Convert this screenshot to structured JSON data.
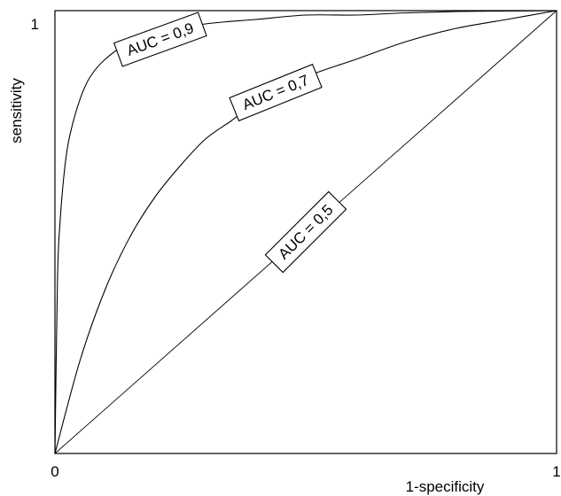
{
  "chart_data": {
    "type": "line",
    "title": "",
    "xlabel": "1-specificity",
    "ylabel": "sensitivity",
    "xlim": [
      0,
      1
    ],
    "ylim": [
      0,
      1
    ],
    "x_tick_labels": [
      "0",
      "1"
    ],
    "y_tick_labels": [
      "1"
    ],
    "grid": false,
    "legend": "none",
    "series": [
      {
        "label": "AUC = 0,9",
        "x": [
          0,
          0.005,
          0.01,
          0.02,
          0.03,
          0.05,
          0.07,
          0.1,
          0.15,
          0.2,
          0.3,
          0.4,
          0.5,
          0.6,
          0.7,
          0.8,
          0.9,
          1
        ],
        "y": [
          0,
          0.39,
          0.52,
          0.65,
          0.72,
          0.8,
          0.85,
          0.89,
          0.93,
          0.95,
          0.97,
          0.98,
          0.99,
          0.99,
          0.995,
          0.998,
          0.999,
          1
        ]
      },
      {
        "label": "AUC = 0,7",
        "x": [
          0,
          0.05,
          0.1,
          0.15,
          0.2,
          0.25,
          0.3,
          0.35,
          0.4,
          0.5,
          0.6,
          0.7,
          0.8,
          0.9,
          1
        ],
        "y": [
          0,
          0.21,
          0.37,
          0.49,
          0.58,
          0.65,
          0.71,
          0.75,
          0.79,
          0.85,
          0.89,
          0.93,
          0.96,
          0.98,
          1
        ]
      },
      {
        "label": "AUC = 0,5",
        "x": [
          0,
          1
        ],
        "y": [
          0,
          1
        ]
      }
    ],
    "annotations": [
      {
        "text": "AUC = 0,9",
        "series": 0,
        "at": [
          0.21,
          0.935
        ],
        "angle": -20
      },
      {
        "text": "AUC = 0,7",
        "series": 1,
        "at": [
          0.44,
          0.815
        ],
        "angle": -22
      },
      {
        "text": "AUC = 0,5",
        "series": 2,
        "at": [
          0.5,
          0.5
        ],
        "angle": -45
      }
    ]
  }
}
